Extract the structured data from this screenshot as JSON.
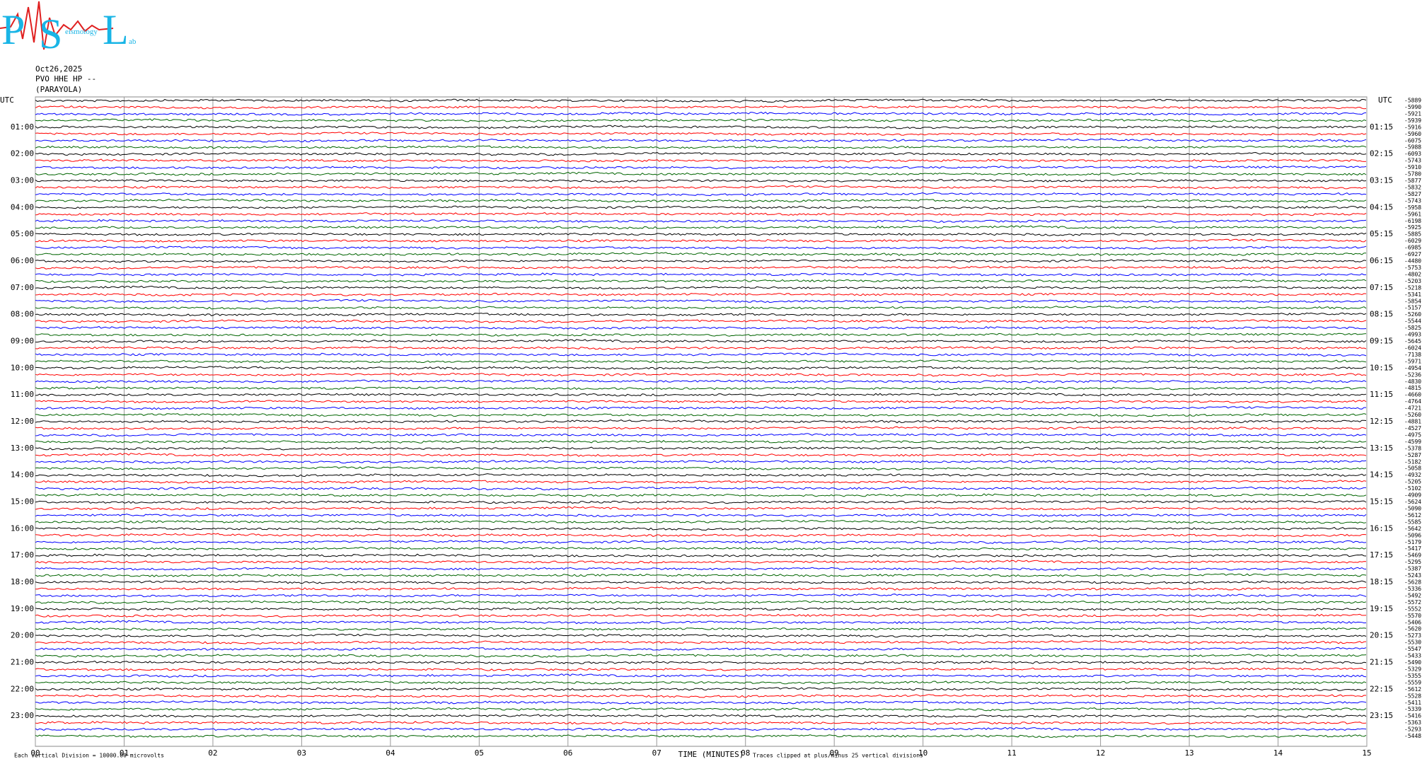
{
  "header": {
    "logo": {
      "p": "P",
      "s": "S",
      "l": "L",
      "sub": "eismology",
      "lab": "ab"
    },
    "date": "Oct26,2025",
    "station": "PVO HHE HP --",
    "site": "(PARAYOLA)"
  },
  "chart_data": {
    "type": "helicorder",
    "xlabel": "TIME (MINUTES)",
    "xlim": [
      0,
      15
    ],
    "xticks": [
      {
        "value": 0,
        "label": "00"
      },
      {
        "value": 1,
        "label": "01"
      },
      {
        "value": 2,
        "label": "02"
      },
      {
        "value": 3,
        "label": "03"
      },
      {
        "value": 4,
        "label": "04"
      },
      {
        "value": 5,
        "label": "05"
      },
      {
        "value": 6,
        "label": "06"
      },
      {
        "value": 7,
        "label": "07"
      },
      {
        "value": 8,
        "label": "08"
      },
      {
        "value": 9,
        "label": "09"
      },
      {
        "value": 10,
        "label": "10"
      },
      {
        "value": 11,
        "label": "11"
      },
      {
        "value": 12,
        "label": "12"
      },
      {
        "value": 13,
        "label": "13"
      },
      {
        "value": 14,
        "label": "14"
      },
      {
        "value": 15,
        "label": "15"
      }
    ],
    "left_label": "UTC",
    "right_label": "UTC",
    "hour_labels": [
      "01:00",
      "02:00",
      "03:00",
      "04:00",
      "05:00",
      "06:00",
      "07:00",
      "08:00",
      "09:00",
      "10:00",
      "11:00",
      "12:00",
      "13:00",
      "14:00",
      "15:00",
      "16:00",
      "17:00",
      "18:00",
      "19:00",
      "20:00",
      "21:00",
      "22:00",
      "23:00"
    ],
    "right_hour_labels": [
      "01:15",
      "02:15",
      "03:15",
      "04:15",
      "05:15",
      "06:15",
      "07:15",
      "08:15",
      "09:15",
      "10:15",
      "11:15",
      "12:15",
      "13:15",
      "14:15",
      "15:15",
      "16:15",
      "17:15",
      "18:15",
      "19:15",
      "20:15",
      "21:15",
      "22:15",
      "23:15"
    ],
    "trace_offsets": [
      -5889,
      -5990,
      -5921,
      -5939,
      -5916,
      -5960,
      -6075,
      -5988,
      -6093,
      -5743,
      -5910,
      -5780,
      -5877,
      -5832,
      -5827,
      -5743,
      -5958,
      -5961,
      -6198,
      -5925,
      -5885,
      -6029,
      -6985,
      -6927,
      -4480,
      -5753,
      -4802,
      -5203,
      -5218,
      -5341,
      -5854,
      -5157,
      -5260,
      -5544,
      -5825,
      -4993,
      -5645,
      -6024,
      -7138,
      -5971,
      -4954,
      -5236,
      -4830,
      -4815,
      -4660,
      -4764,
      -4721,
      -5260,
      -4881,
      -4527,
      -4975,
      -4599,
      -5378,
      -5287,
      -5182,
      -5058,
      -4932,
      -5205,
      -5102,
      -4909,
      -5624,
      -5090,
      -5612,
      -5585,
      -5642,
      -5096,
      -5179,
      -5417,
      -5469,
      -5295,
      -5387,
      -5243,
      -5628,
      -5336,
      -5492,
      -5572,
      -5552,
      -5570,
      -5406,
      -5620,
      -5273,
      -5530,
      -5547,
      -5433,
      -5490,
      -5329,
      -5355,
      -5559,
      -5612,
      -5528,
      -5411,
      -5339,
      -5416,
      -5363,
      -5293,
      -5448
    ],
    "colors": [
      "#000000",
      "#ff0000",
      "#0000ff",
      "#006400"
    ],
    "grid": true
  },
  "footer": {
    "scale": "Each Vertical Division = 10000.00 microvolts",
    "clip": "Traces clipped at plus/minus 25 vertical divisions"
  }
}
